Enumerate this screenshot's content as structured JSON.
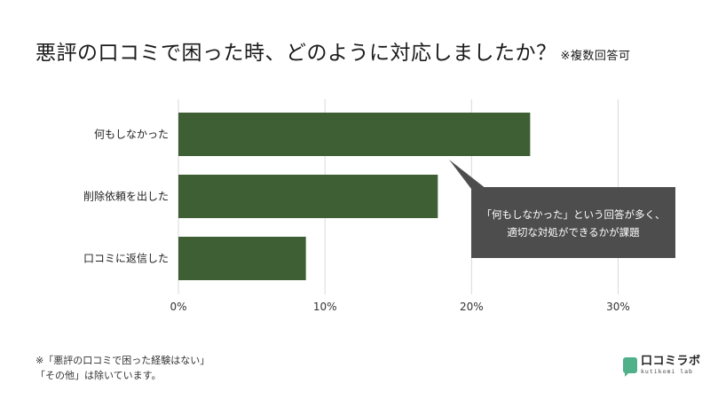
{
  "title": {
    "main": "悪評の口コミで困った時、どのように対応しましたか？",
    "note": "※複数回答可"
  },
  "chart_data": {
    "type": "bar",
    "orientation": "horizontal",
    "categories": [
      "何もしなかった",
      "削除依頼を出した",
      "口コミに返信した"
    ],
    "values": [
      24,
      17.7,
      8.7
    ],
    "unit": "%",
    "xlim": [
      0,
      33
    ],
    "xticks": [
      "0%",
      "10%",
      "20%",
      "30%"
    ],
    "xtick_values": [
      0,
      10,
      20,
      30
    ],
    "grid": true,
    "bar_color": "#3d5f33",
    "callout": {
      "lines": [
        "「何もしなかった」という回答が多く、",
        "適切な対処ができるかが課題"
      ],
      "background": "#4d4d4d",
      "text_color": "#ffffff"
    }
  },
  "footnote": {
    "line1": "※「悪評の口コミで困った経験はない」",
    "line2": "「その他」は除いています。"
  },
  "logo": {
    "main": "口コミラボ",
    "sub": "kutikomi lab",
    "color": "#4fb08a"
  }
}
